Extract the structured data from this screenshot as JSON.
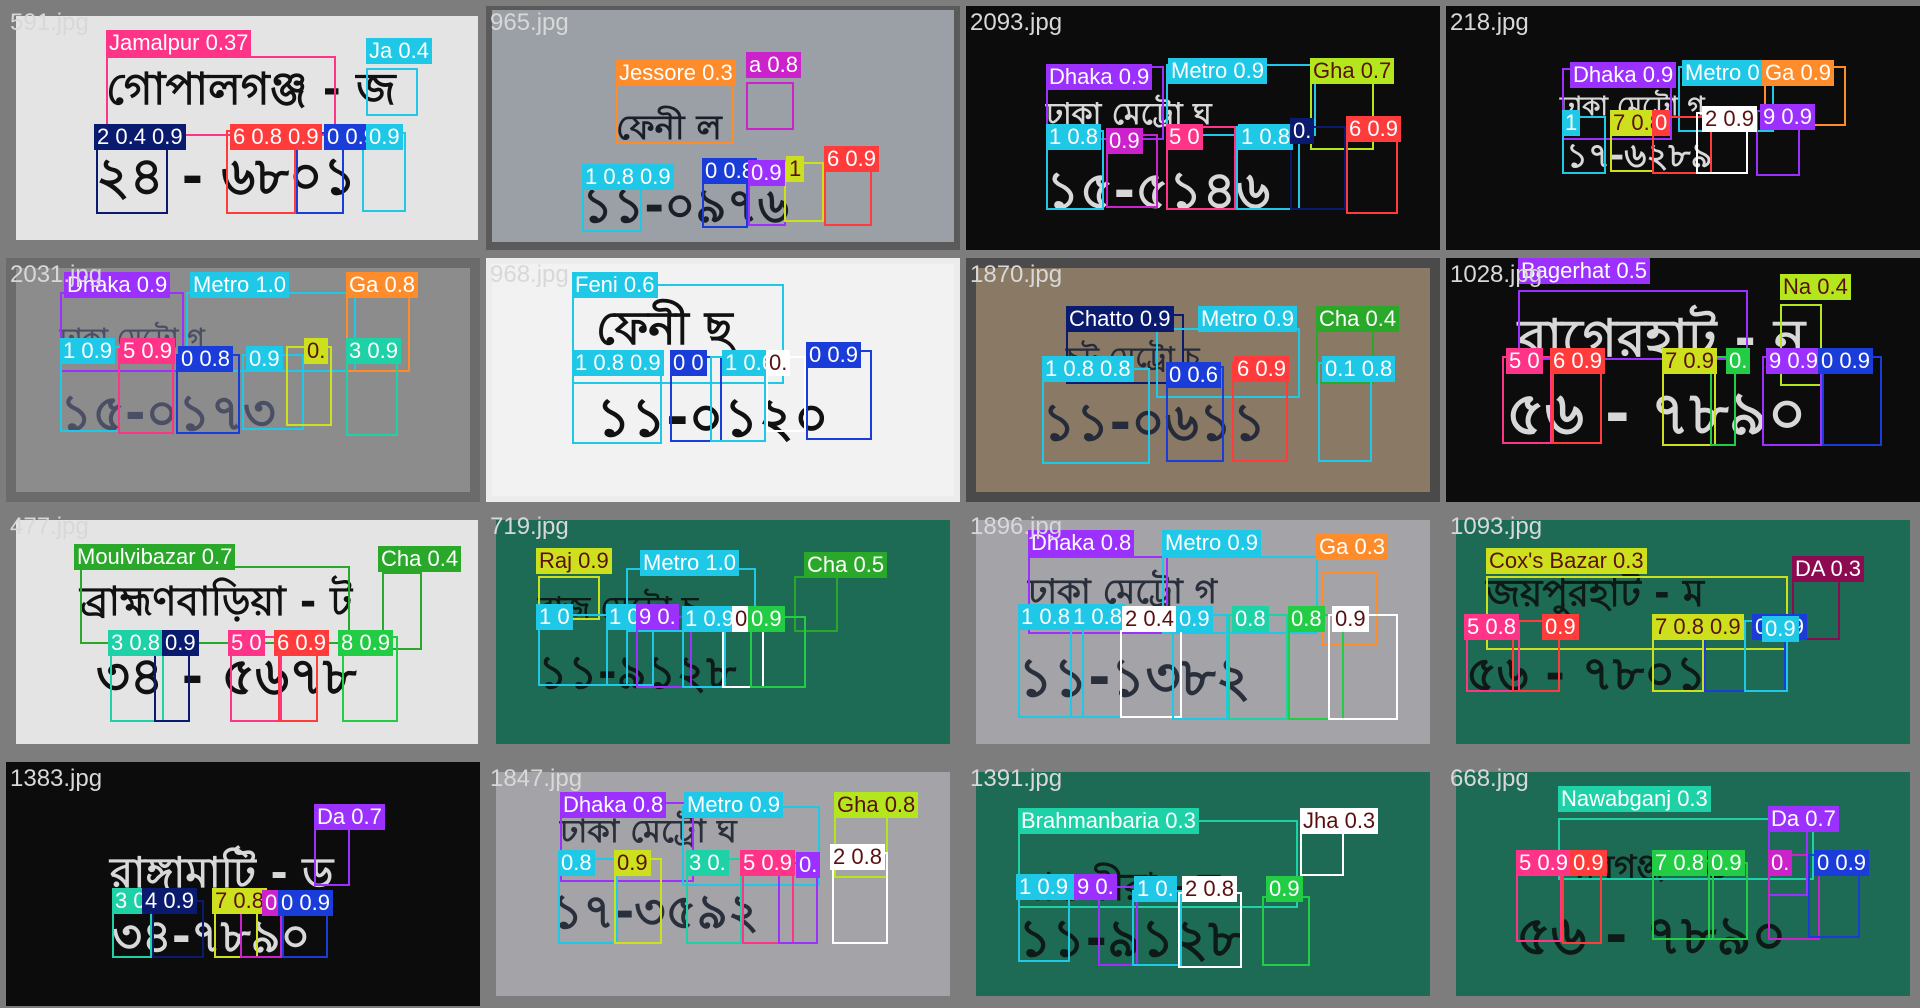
{
  "palette": {
    "pink": "#ff3388",
    "cyan": "#1ec8e6",
    "purple": "#8a2be2",
    "blue": "#1a3cd8",
    "navy": "#0a1a6e",
    "red": "#ff3b3b",
    "green": "#22cc44",
    "yellow": "#cde01e",
    "orange": "#ff8c2a",
    "magenta": "#cc22cc",
    "teal": "#1ed1a6",
    "white": "#ffffff",
    "maroon": "#8b0a50",
    "olive": "#2aa82a",
    "violet": "#9b30ff",
    "lime": "#b4e61e"
  },
  "tiles": [
    {
      "filename": "591.jpg",
      "background": "light-gray",
      "plate_lines": [
        "গোপালগঞ্জ - জ",
        "২৪ - ৬৮০১"
      ],
      "detections": [
        {
          "label": "Jamalpur 0.37",
          "color": "pink"
        },
        {
          "label": "Ja 0.4",
          "color": "cyan"
        },
        {
          "label": "2 0.4 0.9",
          "color": "navy"
        },
        {
          "label": "6 0.8 0.9",
          "color": "red"
        },
        {
          "label": "0 0.9",
          "color": "blue"
        },
        {
          "label": "0.9",
          "color": "cyan"
        }
      ]
    },
    {
      "filename": "965.jpg",
      "background": "photo",
      "plate_lines": [
        "ফেনী ল",
        "১১-০৯৭৬"
      ],
      "detections": [
        {
          "label": "Jessore 0.3",
          "color": "orange"
        },
        {
          "label": "a 0.8",
          "color": "magenta"
        },
        {
          "label": "1 0.8 0.9",
          "color": "cyan"
        },
        {
          "label": "0 0.8",
          "color": "blue"
        },
        {
          "label": "0.9",
          "color": "violet"
        },
        {
          "label": "1",
          "color": "yellow"
        },
        {
          "label": "6 0.9",
          "color": "red"
        }
      ]
    },
    {
      "filename": "2093.jpg",
      "background": "black",
      "plate_lines": [
        "ঢাকা মেট্রো ঘ",
        "১৫-৫১৪৬"
      ],
      "detections": [
        {
          "label": "Dhaka 0.9",
          "color": "violet"
        },
        {
          "label": "Metro 0.9",
          "color": "cyan"
        },
        {
          "label": "Gha 0.7",
          "color": "lime"
        },
        {
          "label": "1 0.8",
          "color": "cyan"
        },
        {
          "label": "0.9",
          "color": "magenta"
        },
        {
          "label": "5 0",
          "color": "pink"
        },
        {
          "label": "1 0.8",
          "color": "cyan"
        },
        {
          "label": "0.",
          "color": "navy"
        },
        {
          "label": "6 0.9",
          "color": "red"
        }
      ]
    },
    {
      "filename": "218.jpg",
      "background": "black",
      "plate_lines": [
        "ঢাকা মেট্রো গ",
        "১৭-৬২৮৯"
      ],
      "detections": [
        {
          "label": "Dhaka 0.9",
          "color": "violet"
        },
        {
          "label": "Metro 0",
          "color": "cyan"
        },
        {
          "label": "Ga 0.9",
          "color": "orange"
        },
        {
          "label": "1",
          "color": "cyan"
        },
        {
          "label": "7 0.8",
          "color": "yellow"
        },
        {
          "label": "0",
          "color": "red"
        },
        {
          "label": "2 0.9",
          "color": "white"
        },
        {
          "label": "9 0.9",
          "color": "violet"
        }
      ]
    },
    {
      "filename": "2031.jpg",
      "background": "photo-dark",
      "plate_lines": [
        "ঢাকা মেট্রো গ",
        "১৫-০১৭৩"
      ],
      "detections": [
        {
          "label": "Dhaka 0.9",
          "color": "violet"
        },
        {
          "label": "Metro 1.0",
          "color": "cyan"
        },
        {
          "label": "Ga 0.8",
          "color": "orange"
        },
        {
          "label": "1 0.9",
          "color": "cyan"
        },
        {
          "label": "5 0.9",
          "color": "pink"
        },
        {
          "label": "0 0.8",
          "color": "blue"
        },
        {
          "label": "0.9",
          "color": "cyan"
        },
        {
          "label": "0.",
          "color": "yellow"
        },
        {
          "label": "3 0.9",
          "color": "teal"
        }
      ]
    },
    {
      "filename": "968.jpg",
      "background": "photo-yellow",
      "plate_lines": [
        "ফেনী ছ",
        "১১-০১২০"
      ],
      "detections": [
        {
          "label": "Feni 0.6",
          "color": "cyan"
        },
        {
          "label": "1 0.8 0.9",
          "color": "cyan"
        },
        {
          "label": "0 0",
          "color": "blue"
        },
        {
          "label": "1 0.6",
          "color": "cyan"
        },
        {
          "label": "0.",
          "color": "white"
        },
        {
          "label": "0 0.9",
          "color": "blue"
        }
      ]
    },
    {
      "filename": "1870.jpg",
      "background": "photo-brown",
      "plate_lines": [
        "চট্ট মেট্রো চ",
        "১১-০৬১১"
      ],
      "detections": [
        {
          "label": "Chatto 0.9",
          "color": "navy"
        },
        {
          "label": "Metro 0.9",
          "color": "cyan"
        },
        {
          "label": "Cha 0.4",
          "color": "olive"
        },
        {
          "label": "1 0.8 0.8",
          "color": "cyan"
        },
        {
          "label": "0 0.6",
          "color": "blue"
        },
        {
          "label": "6 0.9",
          "color": "red"
        },
        {
          "label": "0.1 0.8",
          "color": "cyan"
        }
      ]
    },
    {
      "filename": "1028.jpg",
      "background": "black",
      "plate_lines": [
        "বাগেরহাট - ন",
        "৫৬ - ৭৮৯০"
      ],
      "detections": [
        {
          "label": "Bagerhat 0.5",
          "color": "violet"
        },
        {
          "label": "Na 0.4",
          "color": "lime"
        },
        {
          "label": "5 0",
          "color": "pink"
        },
        {
          "label": "6 0.9",
          "color": "red"
        },
        {
          "label": "7 0.9",
          "color": "yellow"
        },
        {
          "label": "0.",
          "color": "green"
        },
        {
          "label": "9 0.9",
          "color": "violet"
        },
        {
          "label": "0 0.9",
          "color": "blue"
        }
      ]
    },
    {
      "filename": "477.jpg",
      "background": "light-gray",
      "plate_lines": [
        "ব্রাহ্মণবাড়িয়া - ট",
        "৩৪ - ৫৬৭৮"
      ],
      "detections": [
        {
          "label": "Moulvibazar 0.7",
          "color": "olive"
        },
        {
          "label": "Cha 0.4",
          "color": "olive"
        },
        {
          "label": "3 0.8",
          "color": "teal"
        },
        {
          "label": "0.9",
          "color": "navy"
        },
        {
          "label": "5 0",
          "color": "pink"
        },
        {
          "label": "6 0.9",
          "color": "red"
        },
        {
          "label": "8 0.9",
          "color": "green"
        }
      ]
    },
    {
      "filename": "719.jpg",
      "background": "green",
      "plate_lines": [
        "রাজ মেট্রো চ",
        "১১-৯১২৮"
      ],
      "detections": [
        {
          "label": "Raj 0.9",
          "color": "yellow"
        },
        {
          "label": "Metro 1.0",
          "color": "cyan"
        },
        {
          "label": "Cha 0.5",
          "color": "olive"
        },
        {
          "label": "1 0",
          "color": "cyan"
        },
        {
          "label": "1 0.9",
          "color": "cyan"
        },
        {
          "label": "9 0.",
          "color": "violet"
        },
        {
          "label": "1 0.9",
          "color": "cyan"
        },
        {
          "label": "0.9",
          "color": "white"
        },
        {
          "label": "0.9",
          "color": "green"
        }
      ]
    },
    {
      "filename": "1896.jpg",
      "background": "photo-gray",
      "plate_lines": [
        "ঢাকা মেট্রো গ",
        "১১-১৩৮২"
      ],
      "detections": [
        {
          "label": "Dhaka 0.8",
          "color": "violet"
        },
        {
          "label": "Metro 0.9",
          "color": "cyan"
        },
        {
          "label": "Ga 0.3",
          "color": "orange"
        },
        {
          "label": "1 0.8",
          "color": "cyan"
        },
        {
          "label": "1 0.8",
          "color": "cyan"
        },
        {
          "label": "2 0.4",
          "color": "white"
        },
        {
          "label": "0.9",
          "color": "cyan"
        },
        {
          "label": "0.8",
          "color": "teal"
        },
        {
          "label": "0.8",
          "color": "green"
        },
        {
          "label": "0.9",
          "color": "white"
        }
      ]
    },
    {
      "filename": "1093.jpg",
      "background": "green",
      "plate_lines": [
        "জয়পুরহাট - ম",
        "৫৬ - ৭৮০১"
      ],
      "detections": [
        {
          "label": "Cox's Bazar 0.3",
          "color": "yellow"
        },
        {
          "label": "DA 0.3",
          "color": "maroon"
        },
        {
          "label": "5 0.8",
          "color": "pink"
        },
        {
          "label": "0.9",
          "color": "red"
        },
        {
          "label": "7 0.8 0.9",
          "color": "yellow"
        },
        {
          "label": "0 0.9",
          "color": "blue"
        },
        {
          "label": "0.9",
          "color": "cyan"
        }
      ]
    },
    {
      "filename": "1383.jpg",
      "background": "black",
      "plate_lines": [
        "রাঙ্গামাটি - ড",
        "৩৪-৭৮৯০"
      ],
      "detections": [
        {
          "label": "Da 0.7",
          "color": "violet"
        },
        {
          "label": "3 0.",
          "color": "teal"
        },
        {
          "label": "4 0.9",
          "color": "navy"
        },
        {
          "label": "7 0.8",
          "color": "yellow"
        },
        {
          "label": "0.9",
          "color": "magenta"
        },
        {
          "label": "0 0.9",
          "color": "blue"
        }
      ]
    },
    {
      "filename": "1847.jpg",
      "background": "photo-gray",
      "plate_lines": [
        "ঢাকা মেট্রো ঘ",
        "১৭-৩৫৯২"
      ],
      "detections": [
        {
          "label": "Dhaka 0.8",
          "color": "violet"
        },
        {
          "label": "Metro 0.9",
          "color": "cyan"
        },
        {
          "label": "Gha 0.8",
          "color": "lime"
        },
        {
          "label": "0.8",
          "color": "cyan"
        },
        {
          "label": "0.9",
          "color": "yellow"
        },
        {
          "label": "3 0.",
          "color": "teal"
        },
        {
          "label": "5 0.9",
          "color": "pink"
        },
        {
          "label": "0.",
          "color": "violet"
        },
        {
          "label": "2 0.8",
          "color": "white"
        }
      ]
    },
    {
      "filename": "1391.jpg",
      "background": "green",
      "plate_lines": [
        "সাতক্ষীরা - ম",
        "১১-৯১২৮"
      ],
      "detections": [
        {
          "label": "Brahmanbaria 0.3",
          "color": "teal"
        },
        {
          "label": "Jha 0.3",
          "color": "white"
        },
        {
          "label": "1 0.9 0.9",
          "color": "cyan"
        },
        {
          "label": "9 0.",
          "color": "violet"
        },
        {
          "label": "1 0.",
          "color": "cyan"
        },
        {
          "label": "2 0.8",
          "color": "white"
        },
        {
          "label": "0.9",
          "color": "green"
        }
      ]
    },
    {
      "filename": "668.jpg",
      "background": "green",
      "plate_lines": [
        "নবাবগঞ্জ - ড",
        "৫৬ - ৭৮৯০"
      ],
      "detections": [
        {
          "label": "Nawabganj 0.3",
          "color": "teal"
        },
        {
          "label": "Da 0.7",
          "color": "violet"
        },
        {
          "label": "5 0.9",
          "color": "pink"
        },
        {
          "label": "0.9",
          "color": "red"
        },
        {
          "label": "7 0.8",
          "color": "green"
        },
        {
          "label": "0.9",
          "color": "green"
        },
        {
          "label": "0.",
          "color": "magenta"
        },
        {
          "label": "0 0.9",
          "color": "blue"
        }
      ]
    }
  ]
}
